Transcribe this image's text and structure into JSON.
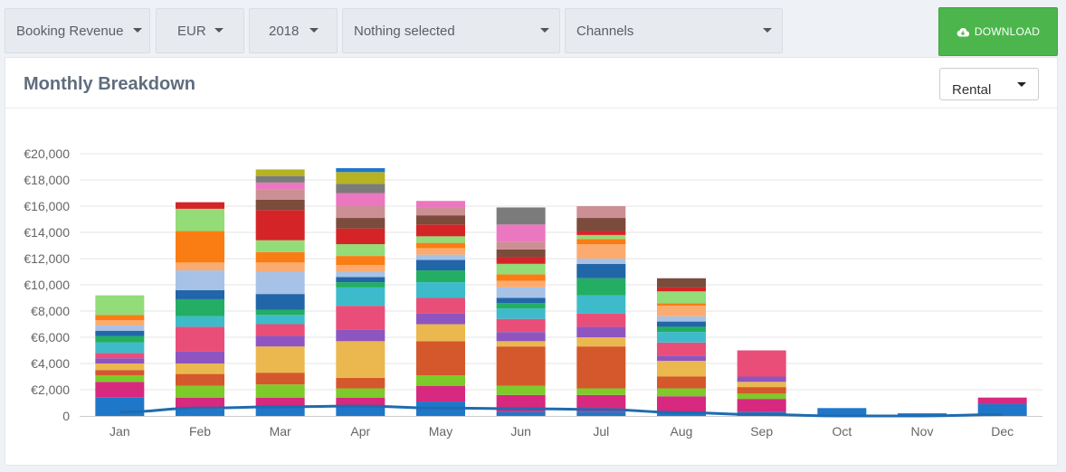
{
  "toolbar": {
    "metric": "Booking Revenue",
    "currency": "EUR",
    "year": "2018",
    "filter": "Nothing selected",
    "channels": "Channels",
    "download_label": "DOWNLOAD",
    "download_color": "#4cb64c"
  },
  "card": {
    "title": "Monthly Breakdown",
    "select_value": "Rental"
  },
  "chart_data": {
    "type": "bar",
    "stacked": true,
    "categories": [
      "Jan",
      "Feb",
      "Mar",
      "Apr",
      "May",
      "Jun",
      "Jul",
      "Aug",
      "Sep",
      "Oct",
      "Nov",
      "Dec"
    ],
    "ylim": [
      0,
      21000
    ],
    "yticks": [
      0,
      2000,
      4000,
      6000,
      8000,
      10000,
      12000,
      14000,
      16000,
      18000,
      20000
    ],
    "ytick_labels": [
      "0",
      "€2,000",
      "€4,000",
      "€6,000",
      "€8,000",
      "€10,000",
      "€12,000",
      "€14,000",
      "€16,000",
      "€18,000",
      "€20,000"
    ],
    "grid": true,
    "segment_colors": [
      "#1f77c9",
      "#d6297f",
      "#7dcb2a",
      "#d4582b",
      "#eab84f",
      "#8e55c0",
      "#e94e79",
      "#3ebbcb",
      "#23ae63",
      "#2166a8",
      "#a7c2e6",
      "#fcab70",
      "#fa7d13",
      "#93dc78",
      "#d52428",
      "#7b4b3b",
      "#cc8f93",
      "#eb77c0",
      "#7b7b7b",
      "#b5b324"
    ],
    "stacks": [
      [
        1400,
        1200,
        500,
        400,
        500,
        400,
        400,
        800,
        500,
        400,
        400,
        400,
        400,
        1500
      ],
      [
        500,
        900,
        900,
        900,
        800,
        900,
        1900,
        800,
        1300,
        700,
        1500,
        600,
        2400,
        1700,
        500
      ],
      [
        700,
        700,
        1000,
        900,
        2000,
        800,
        900,
        700,
        400,
        1200,
        1700,
        700,
        800,
        900,
        2300,
        800,
        800,
        500,
        500,
        500
      ],
      [
        700,
        700,
        700,
        800,
        2800,
        900,
        1800,
        1400,
        400,
        400,
        400,
        500,
        700,
        900,
        1200,
        800,
        900,
        1000,
        700,
        900,
        300
      ],
      [
        1100,
        1200,
        800,
        2600,
        1300,
        800,
        1200,
        1200,
        900,
        800,
        400,
        500,
        400,
        500,
        900,
        700,
        600,
        500
      ],
      [
        300,
        1300,
        700,
        3000,
        400,
        700,
        1000,
        800,
        400,
        400,
        800,
        500,
        500,
        800,
        500,
        600,
        600,
        1300,
        1300
      ],
      [
        300,
        1300,
        500,
        3200,
        700,
        800,
        1000,
        1400,
        1300,
        1100,
        400,
        1100,
        400,
        300,
        300,
        1000,
        900
      ],
      [
        300,
        1200,
        600,
        900,
        1200,
        400,
        1000,
        800,
        400,
        400,
        400,
        800,
        200,
        900,
        300,
        700
      ],
      [
        300,
        1000,
        400,
        500,
        400,
        400,
        2000
      ],
      [
        600
      ],
      [
        200
      ],
      [
        900,
        500
      ]
    ],
    "line": {
      "name": "",
      "color": "#1f6bb0",
      "values": [
        300,
        600,
        700,
        750,
        600,
        550,
        500,
        250,
        100,
        0,
        0,
        100
      ]
    }
  }
}
